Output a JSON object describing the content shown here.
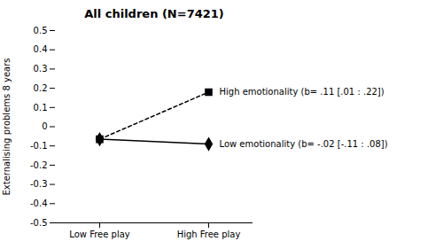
{
  "chart_data": {
    "type": "line",
    "title": "All children (N=7421)",
    "categories": [
      "Low Free play",
      "High Free play"
    ],
    "y_label": "Externalising problems 8 years",
    "ylim": [
      -0.5,
      0.5
    ],
    "yticks": [
      -0.5,
      -0.4,
      -0.3,
      -0.2,
      -0.1,
      0,
      0.1,
      0.2,
      0.3,
      0.4,
      0.5
    ],
    "grid": false,
    "series": [
      {
        "name": "High emotionality (b= .11 [.01 : .22])",
        "color": "#000000",
        "marker": "square",
        "line_style": "dashed",
        "values": [
          -0.065,
          0.18
        ]
      },
      {
        "name": "Low emotionality (b= -.02 [-.11 : .08])",
        "color": "#000000",
        "marker": "diamond",
        "line_style": "solid",
        "values": [
          -0.065,
          -0.09
        ]
      }
    ]
  }
}
